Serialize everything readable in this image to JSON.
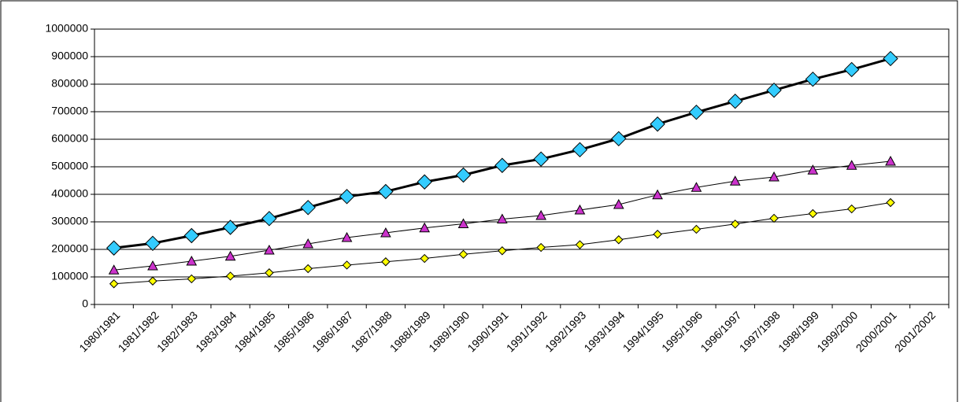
{
  "chart_data": {
    "type": "line",
    "categories": [
      "1980/1981",
      "1981/1982",
      "1982/1983",
      "1983/1984",
      "1984/1985",
      "1985/1986",
      "1986/1987",
      "1987/1988",
      "1988/1989",
      "1989/1990",
      "1990/1991",
      "1991/1992",
      "1992/1993",
      "1993/1994",
      "1994/1995",
      "1995/1996",
      "1996/1997",
      "1997/1998",
      "1998/1999",
      "1999/2000",
      "2000/2001",
      "2001/2002"
    ],
    "series": [
      {
        "color": "#33ccff",
        "marker": "diamond",
        "line_width": 3,
        "values": [
          205000,
          222000,
          250000,
          280000,
          312000,
          352000,
          392000,
          410000,
          445000,
          470000,
          505000,
          528000,
          562000,
          602000,
          655000,
          698000,
          738000,
          778000,
          818000,
          853000,
          893000,
          null
        ]
      },
      {
        "color": "#cc33cc",
        "marker": "triangle",
        "line_width": 1,
        "values": [
          125000,
          140000,
          157000,
          175000,
          197000,
          220000,
          243000,
          260000,
          278000,
          293000,
          310000,
          323000,
          343000,
          363000,
          398000,
          425000,
          448000,
          463000,
          488000,
          505000,
          520000,
          null
        ]
      },
      {
        "color": "#ffff00",
        "marker": "diamond",
        "line_width": 1,
        "values": [
          75000,
          85000,
          93000,
          103000,
          115000,
          130000,
          143000,
          155000,
          167000,
          182000,
          195000,
          207000,
          217000,
          235000,
          255000,
          273000,
          292000,
          313000,
          330000,
          347000,
          370000,
          null
        ]
      }
    ],
    "ylim": [
      0,
      1000000
    ],
    "yticks": [
      0,
      100000,
      200000,
      300000,
      400000,
      500000,
      600000,
      700000,
      800000,
      900000,
      1000000
    ],
    "grid": true
  }
}
